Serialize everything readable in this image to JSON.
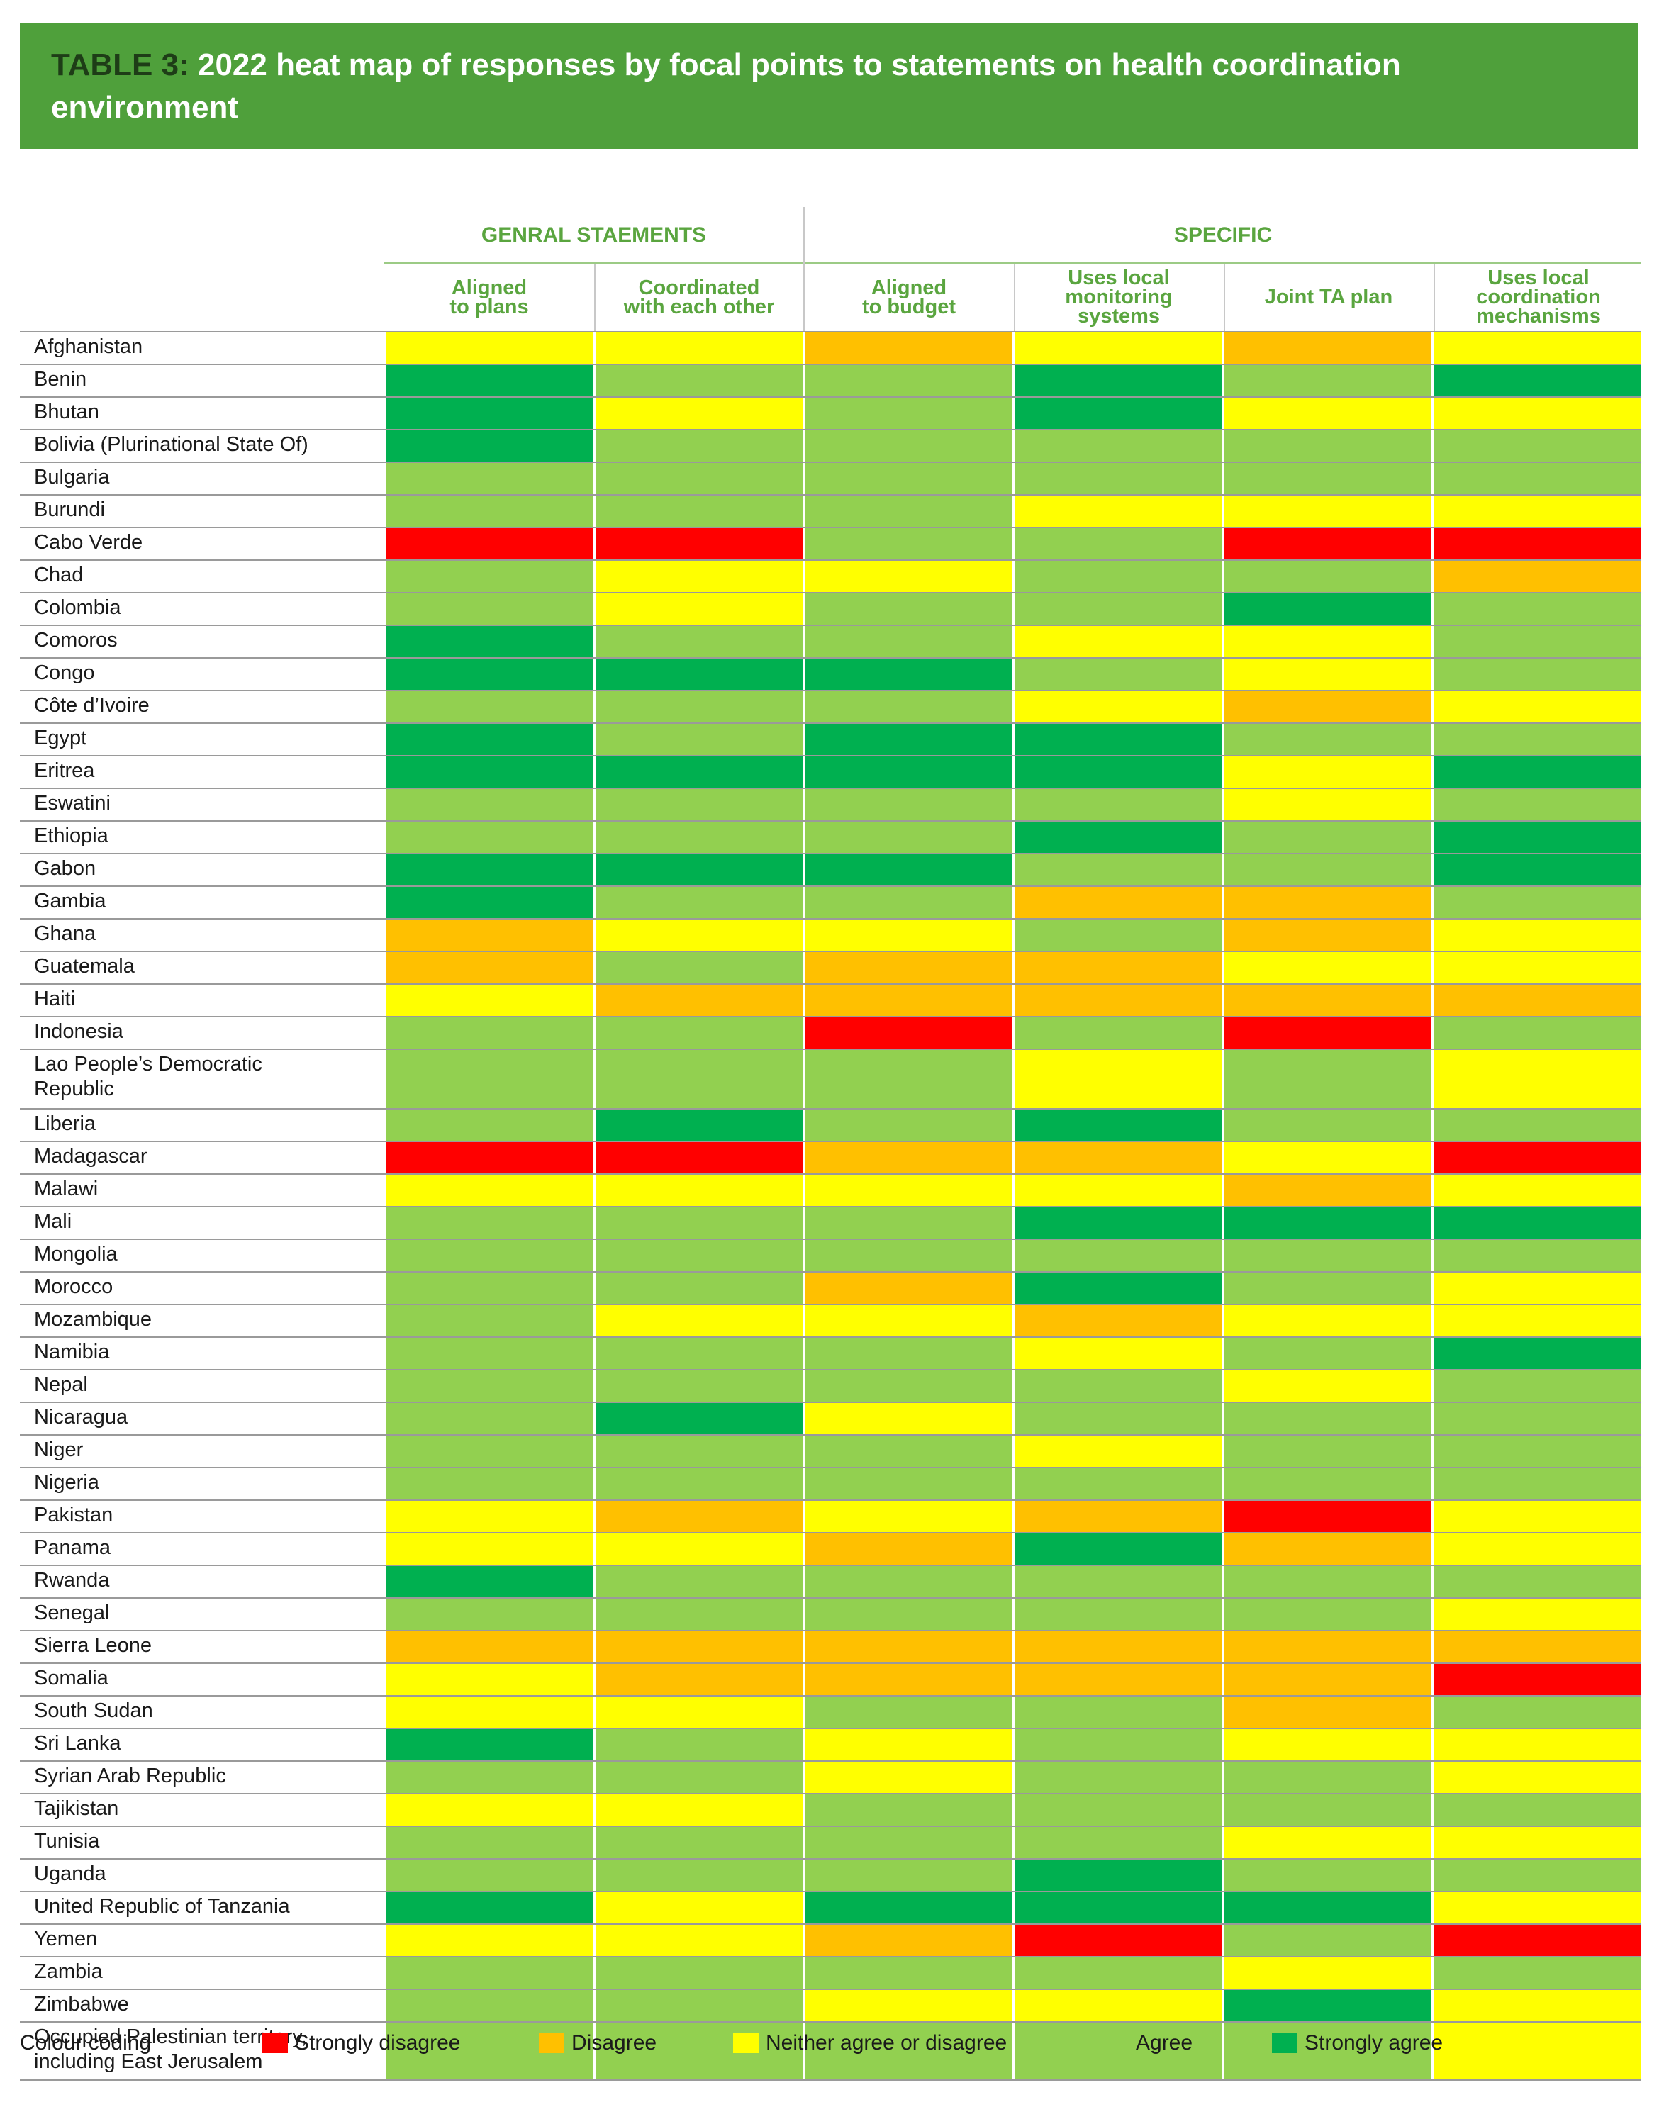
{
  "title": {
    "tag": "TABLE 3:",
    "line1": "2022 heat map of responses by focal points to statements on health coordination",
    "line2": "environment"
  },
  "headers": {
    "groups": [
      "GENRAL STAEMENTS",
      "SPECIFIC"
    ],
    "columns": [
      [
        "Aligned",
        "to plans"
      ],
      [
        "Coordinated",
        "with each other"
      ],
      [
        "Aligned",
        "to budget"
      ],
      [
        "Uses local",
        "monitoring",
        "systems"
      ],
      [
        "Joint TA plan"
      ],
      [
        "Uses local",
        "coordination",
        "mechanisms"
      ]
    ]
  },
  "legend": {
    "title": "Colour coding",
    "items": [
      {
        "label": "Strongly disagree",
        "color": "#ff0000"
      },
      {
        "label": "Disagree",
        "color": "#ffc000"
      },
      {
        "label": "Neither agree or disagree",
        "color": "#ffff00"
      },
      {
        "label": "Agree",
        "color": "#92d050"
      },
      {
        "label": "Strongly agree",
        "color": "#00b050"
      }
    ]
  },
  "chart_data": {
    "type": "heatmap",
    "title": "2022 heat map of responses by focal points to statements on health coordination environment",
    "x_groups": [
      {
        "name": "GENRAL STAEMENTS",
        "columns": [
          "Aligned to plans",
          "Coordinated with each other"
        ]
      },
      {
        "name": "SPECIFIC",
        "columns": [
          "Aligned to budget",
          "Uses local monitoring systems",
          "Joint TA plan",
          "Uses local coordination mechanisms"
        ]
      }
    ],
    "columns": [
      "Aligned to plans",
      "Coordinated with each other",
      "Aligned to budget",
      "Uses local monitoring systems",
      "Joint TA plan",
      "Uses local coordination mechanisms"
    ],
    "scale": {
      "SD": "Strongly disagree",
      "D": "Disagree",
      "N": "Neither agree or disagree",
      "A": "Agree",
      "SA": "Strongly agree"
    },
    "rows": [
      {
        "label": "Afghanistan",
        "values": [
          "N",
          "N",
          "D",
          "N",
          "D",
          "N"
        ]
      },
      {
        "label": "Benin",
        "values": [
          "SA",
          "A",
          "A",
          "SA",
          "A",
          "SA"
        ]
      },
      {
        "label": "Bhutan",
        "values": [
          "SA",
          "N",
          "A",
          "SA",
          "N",
          "N"
        ]
      },
      {
        "label": "Bolivia (Plurinational State Of)",
        "values": [
          "SA",
          "A",
          "A",
          "A",
          "A",
          "A"
        ]
      },
      {
        "label": "Bulgaria",
        "values": [
          "A",
          "A",
          "A",
          "A",
          "A",
          "A"
        ]
      },
      {
        "label": "Burundi",
        "values": [
          "A",
          "A",
          "A",
          "N",
          "N",
          "N"
        ]
      },
      {
        "label": "Cabo Verde",
        "values": [
          "SD",
          "SD",
          "A",
          "A",
          "SD",
          "SD"
        ]
      },
      {
        "label": "Chad",
        "values": [
          "A",
          "N",
          "N",
          "A",
          "A",
          "D"
        ]
      },
      {
        "label": "Colombia",
        "values": [
          "A",
          "N",
          "A",
          "A",
          "SA",
          "A"
        ]
      },
      {
        "label": "Comoros",
        "values": [
          "SA",
          "A",
          "A",
          "N",
          "N",
          "A"
        ]
      },
      {
        "label": "Congo",
        "values": [
          "SA",
          "SA",
          "SA",
          "A",
          "N",
          "A"
        ]
      },
      {
        "label": "Côte d’Ivoire",
        "values": [
          "A",
          "A",
          "A",
          "N",
          "D",
          "N"
        ]
      },
      {
        "label": "Egypt",
        "values": [
          "SA",
          "A",
          "SA",
          "SA",
          "A",
          "A"
        ]
      },
      {
        "label": "Eritrea",
        "values": [
          "SA",
          "SA",
          "SA",
          "SA",
          "N",
          "SA"
        ]
      },
      {
        "label": "Eswatini",
        "values": [
          "A",
          "A",
          "A",
          "A",
          "N",
          "A"
        ]
      },
      {
        "label": "Ethiopia",
        "values": [
          "A",
          "A",
          "A",
          "SA",
          "A",
          "SA"
        ]
      },
      {
        "label": "Gabon",
        "values": [
          "SA",
          "SA",
          "SA",
          "A",
          "A",
          "SA"
        ]
      },
      {
        "label": "Gambia",
        "values": [
          "SA",
          "A",
          "A",
          "D",
          "D",
          "A"
        ]
      },
      {
        "label": "Ghana",
        "values": [
          "D",
          "N",
          "N",
          "A",
          "D",
          "N"
        ]
      },
      {
        "label": "Guatemala",
        "values": [
          "D",
          "A",
          "D",
          "D",
          "N",
          "N"
        ]
      },
      {
        "label": "Haiti",
        "values": [
          "N",
          "D",
          "D",
          "D",
          "D",
          "D"
        ]
      },
      {
        "label": "Indonesia",
        "values": [
          "A",
          "A",
          "SD",
          "A",
          "SD",
          "A"
        ]
      },
      {
        "label": "Lao People’s Democratic Republic",
        "lines": [
          "Lao People’s Democratic",
          "Republic"
        ],
        "values": [
          "A",
          "A",
          "A",
          "N",
          "A",
          "N"
        ]
      },
      {
        "label": "Liberia",
        "values": [
          "A",
          "SA",
          "A",
          "SA",
          "A",
          "A"
        ]
      },
      {
        "label": "Madagascar",
        "values": [
          "SD",
          "SD",
          "D",
          "D",
          "N",
          "SD"
        ]
      },
      {
        "label": "Malawi",
        "values": [
          "N",
          "N",
          "N",
          "N",
          "D",
          "N"
        ]
      },
      {
        "label": "Mali",
        "values": [
          "A",
          "A",
          "A",
          "SA",
          "SA",
          "SA"
        ]
      },
      {
        "label": "Mongolia",
        "values": [
          "A",
          "A",
          "A",
          "A",
          "A",
          "A"
        ]
      },
      {
        "label": "Morocco",
        "values": [
          "A",
          "A",
          "D",
          "SA",
          "A",
          "N"
        ]
      },
      {
        "label": "Mozambique",
        "values": [
          "A",
          "N",
          "N",
          "D",
          "N",
          "N"
        ]
      },
      {
        "label": "Namibia",
        "values": [
          "A",
          "A",
          "A",
          "N",
          "A",
          "SA"
        ]
      },
      {
        "label": "Nepal",
        "values": [
          "A",
          "A",
          "A",
          "A",
          "N",
          "A"
        ]
      },
      {
        "label": "Nicaragua",
        "values": [
          "A",
          "SA",
          "N",
          "A",
          "A",
          "A"
        ]
      },
      {
        "label": "Niger",
        "values": [
          "A",
          "A",
          "A",
          "N",
          "A",
          "A"
        ]
      },
      {
        "label": "Nigeria",
        "values": [
          "A",
          "A",
          "A",
          "A",
          "A",
          "A"
        ]
      },
      {
        "label": "Pakistan",
        "values": [
          "N",
          "D",
          "N",
          "D",
          "SD",
          "N"
        ]
      },
      {
        "label": "Panama",
        "values": [
          "N",
          "N",
          "D",
          "SA",
          "D",
          "N"
        ]
      },
      {
        "label": "Rwanda",
        "values": [
          "SA",
          "A",
          "A",
          "A",
          "A",
          "A"
        ]
      },
      {
        "label": "Senegal",
        "values": [
          "A",
          "A",
          "A",
          "A",
          "A",
          "N"
        ]
      },
      {
        "label": "Sierra Leone",
        "values": [
          "D",
          "D",
          "D",
          "D",
          "D",
          "D"
        ]
      },
      {
        "label": "Somalia",
        "values": [
          "N",
          "D",
          "D",
          "D",
          "D",
          "SD"
        ]
      },
      {
        "label": "South Sudan",
        "values": [
          "N",
          "N",
          "A",
          "A",
          "D",
          "A"
        ]
      },
      {
        "label": "Sri Lanka",
        "values": [
          "SA",
          "A",
          "N",
          "A",
          "N",
          "N"
        ]
      },
      {
        "label": "Syrian Arab Republic",
        "values": [
          "A",
          "A",
          "N",
          "A",
          "A",
          "N"
        ]
      },
      {
        "label": "Tajikistan",
        "values": [
          "N",
          "N",
          "A",
          "A",
          "A",
          "A"
        ]
      },
      {
        "label": "Tunisia",
        "values": [
          "A",
          "A",
          "A",
          "A",
          "N",
          "N"
        ]
      },
      {
        "label": "Uganda",
        "values": [
          "A",
          "A",
          "A",
          "SA",
          "A",
          "A"
        ]
      },
      {
        "label": "United Republic of Tanzania",
        "values": [
          "SA",
          "N",
          "SA",
          "SA",
          "SA",
          "N"
        ]
      },
      {
        "label": "Yemen",
        "values": [
          "N",
          "N",
          "D",
          "SD",
          "A",
          "SD"
        ]
      },
      {
        "label": "Zambia",
        "values": [
          "A",
          "A",
          "A",
          "A",
          "N",
          "A"
        ]
      },
      {
        "label": "Zimbabwe",
        "values": [
          "A",
          "A",
          "N",
          "N",
          "SA",
          "N"
        ]
      },
      {
        "label": "Occupied Palestinian territory, including East Jerusalem",
        "lines": [
          "Occupied Palestinian territory,",
          "including East Jerusalem"
        ],
        "values": [
          "A",
          "A",
          "A",
          "A",
          "A",
          "N"
        ]
      }
    ]
  }
}
